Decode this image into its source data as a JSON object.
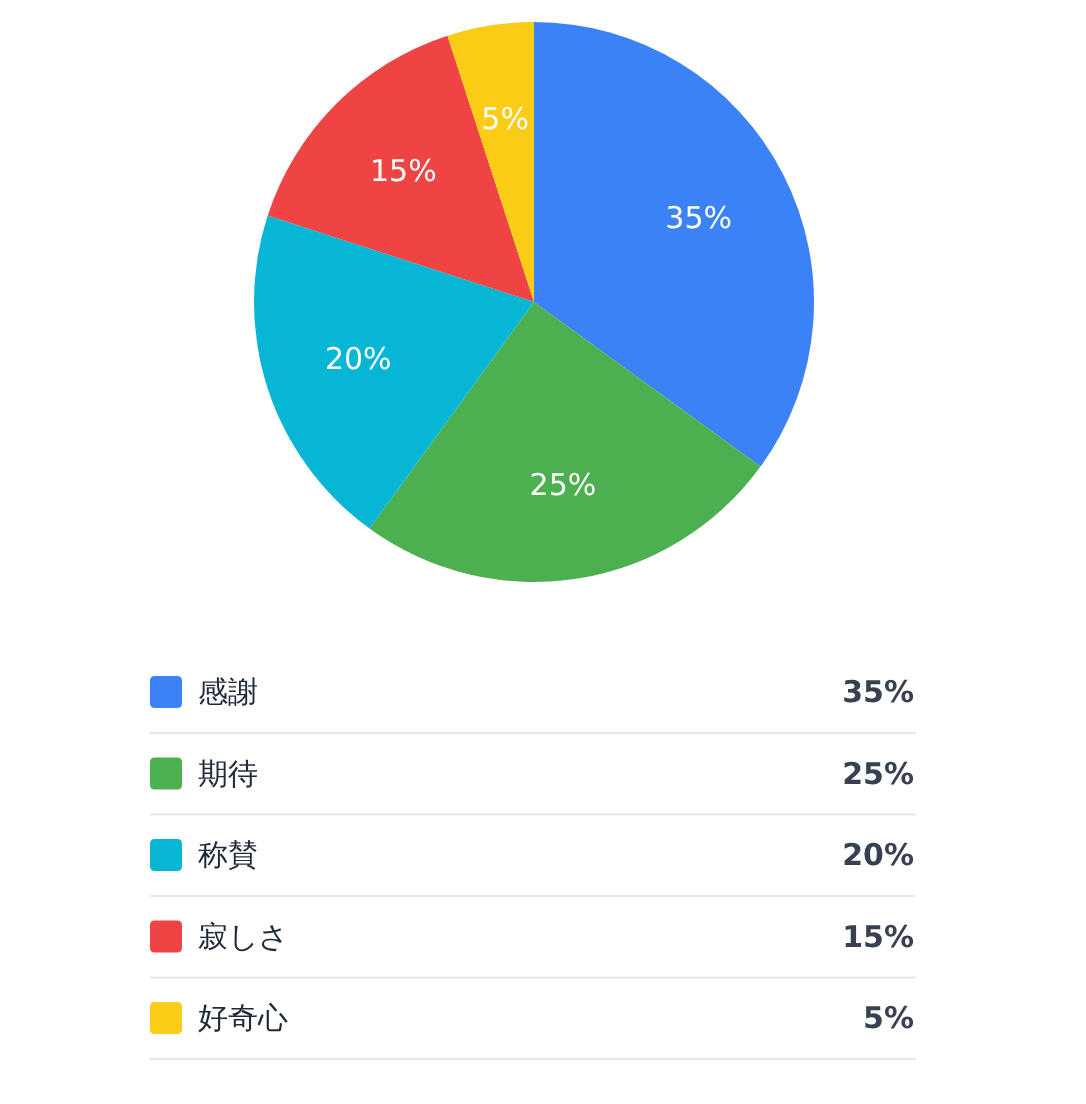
{
  "chart_data": {
    "type": "pie",
    "categories": [
      "感謝",
      "期待",
      "称賛",
      "寂しさ",
      "好奇心"
    ],
    "values": [
      35,
      25,
      20,
      15,
      5
    ],
    "colors": [
      "#3b82f6",
      "#4caf50",
      "#06b6d4",
      "#ef4444",
      "#facc15"
    ],
    "value_labels": [
      "35%",
      "25%",
      "20%",
      "15%",
      "5%"
    ],
    "legend": "bottom"
  }
}
